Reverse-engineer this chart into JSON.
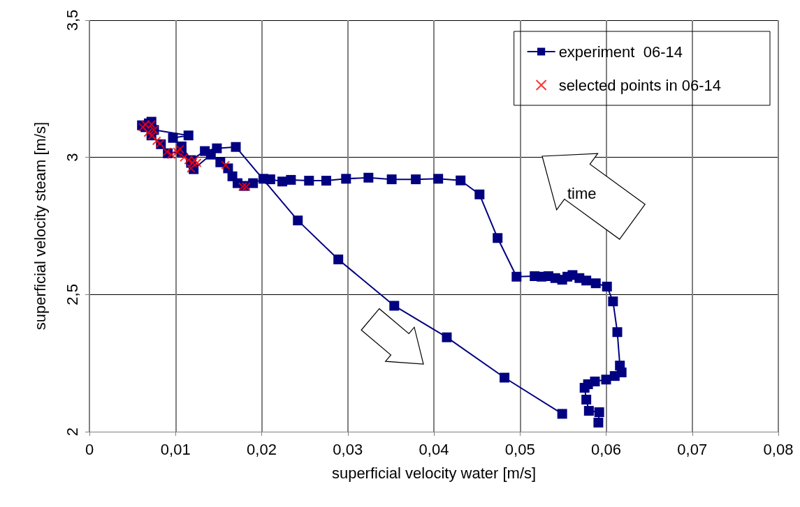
{
  "chart_data": {
    "type": "line",
    "xlabel": "superficial velocity water [m/s]",
    "ylabel": "superficial velocity steam [m/s]",
    "xlim": [
      0,
      0.08
    ],
    "ylim": [
      2,
      3.5
    ],
    "xticks": [
      0,
      {
        "value": 0.01,
        "label": "0,01"
      },
      {
        "value": 0.02,
        "label": "0,02"
      },
      {
        "value": 0.03,
        "label": "0,03"
      },
      {
        "value": 0.04,
        "label": "0,04"
      },
      {
        "value": 0.05,
        "label": "0,05"
      },
      {
        "value": 0.06,
        "label": "0,06"
      },
      {
        "value": 0.07,
        "label": "0,07"
      },
      {
        "value": 0.08,
        "label": "0,08"
      }
    ],
    "yticks": [
      2,
      {
        "value": 2.5,
        "label": "2,5"
      },
      3,
      {
        "value": 3.5,
        "label": "3,5"
      }
    ],
    "grid": true,
    "legend": "top right",
    "annotations": [
      "time"
    ],
    "series": [
      {
        "name": "experiment  06-14",
        "color": "#000080",
        "marker": "square",
        "line_style": "solid",
        "x": [
          0.0069,
          0.0075,
          0.0115,
          0.0097,
          0.0107,
          0.0118,
          0.0134,
          0.0148,
          0.017,
          0.0242,
          0.0289,
          0.0354,
          0.0415,
          0.0482,
          0.0549,
          null,
          0.0591,
          0.0592,
          0.058,
          0.0577,
          0.0575,
          0.0579,
          0.0587,
          0.06,
          0.061,
          0.0618,
          0.0616,
          0.0613,
          0.0608,
          0.0601,
          0.0588,
          0.0577,
          0.0569,
          0.0561,
          0.0555,
          0.0549,
          0.0541,
          0.0533,
          0.0525,
          0.0517,
          0.0496,
          0.0474,
          0.0453,
          0.0431,
          0.0405,
          0.0379,
          0.0351,
          0.0324,
          0.0298,
          0.0275,
          0.0255,
          0.0234,
          0.0224,
          0.021,
          0.0202,
          0.019,
          0.018,
          0.0172,
          0.0166,
          0.0161,
          0.0152,
          0.0141,
          0.0121,
          0.0118,
          0.0107,
          0.0091,
          0.0083,
          0.0072,
          0.0061,
          0.0065,
          0.0072
        ],
        "values": [
          3.124,
          3.1,
          3.08,
          3.071,
          3.04,
          2.99,
          3.023,
          3.033,
          3.038,
          2.77,
          2.628,
          2.459,
          2.344,
          2.197,
          2.065,
          null,
          2.033,
          2.071,
          2.076,
          2.117,
          2.16,
          2.173,
          2.183,
          2.19,
          2.203,
          2.216,
          2.241,
          2.363,
          2.475,
          2.529,
          2.541,
          2.551,
          2.56,
          2.571,
          2.565,
          2.554,
          2.56,
          2.567,
          2.565,
          2.567,
          2.565,
          2.706,
          2.865,
          2.916,
          2.922,
          2.92,
          2.92,
          2.926,
          2.922,
          2.915,
          2.915,
          2.918,
          2.912,
          2.92,
          2.922,
          2.906,
          2.896,
          2.906,
          2.931,
          2.96,
          2.982,
          3.01,
          2.957,
          2.98,
          3.02,
          3.015,
          3.048,
          3.08,
          3.117,
          3.11,
          3.13
        ]
      },
      {
        "name": "selected points in 06-14",
        "type": "scatter",
        "color": "#ff0000",
        "marker": "cross",
        "x": [
          0.0065,
          0.0062,
          0.0072,
          0.0075,
          0.0068,
          0.0073,
          0.0078,
          0.0082,
          0.009,
          0.0095,
          0.0102,
          0.0105,
          0.011,
          0.0115,
          0.012,
          0.0118,
          0.0122,
          0.0125,
          0.0158,
          0.0178,
          0.0182
        ],
        "values": [
          3.12,
          3.11,
          3.12,
          3.1,
          3.09,
          3.08,
          3.06,
          3.05,
          3.02,
          3.01,
          3.02,
          3.03,
          3.0,
          2.99,
          2.98,
          2.96,
          2.99,
          2.98,
          2.972,
          2.893,
          2.893
        ]
      }
    ]
  }
}
